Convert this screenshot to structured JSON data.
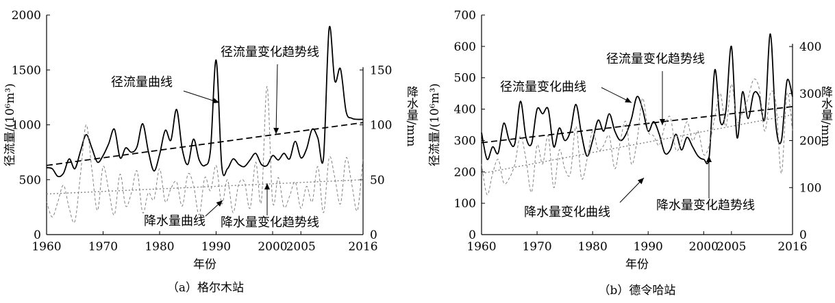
{
  "colors": {
    "runoff": "#000000",
    "trend": "#000000",
    "precip": "#808080",
    "axis": "#000000",
    "background": "#ffffff"
  },
  "chart_data": [
    {
      "type": "line",
      "caption": "（a）格尔木站",
      "xlabel": "年份",
      "ylabel_left": "径流量/(10⁶m³)",
      "ylabel_right": "降水量/mm",
      "xticks": [
        1960,
        1970,
        1980,
        1990,
        2000,
        2005,
        2016
      ],
      "yticks_left": [
        0,
        500,
        1000,
        1500,
        2000
      ],
      "yticks_right": [
        0,
        50,
        100,
        150
      ],
      "xlim": [
        1960,
        2016
      ],
      "ylim_left": [
        0,
        2000
      ],
      "ylim_right": [
        0,
        200
      ],
      "grid": false,
      "series": [
        {
          "name": "径流量曲线",
          "axis": "left",
          "style": "solid",
          "x": [
            1960,
            1961,
            1962,
            1963,
            1964,
            1965,
            1966,
            1967,
            1968,
            1969,
            1970,
            1971,
            1972,
            1973,
            1974,
            1975,
            1976,
            1977,
            1978,
            1979,
            1980,
            1981,
            1982,
            1983,
            1984,
            1985,
            1986,
            1987,
            1988,
            1989,
            1990,
            1991,
            1992,
            1993,
            1994,
            1995,
            1996,
            1997,
            1998,
            1999,
            2000,
            2001,
            2002,
            2003,
            2004,
            2005,
            2006,
            2007,
            2008,
            2009,
            2010,
            2011,
            2012,
            2013,
            2014,
            2015,
            2016
          ],
          "values": [
            610,
            600,
            530,
            560,
            690,
            600,
            760,
            910,
            790,
            660,
            720,
            830,
            960,
            700,
            790,
            750,
            800,
            1010,
            760,
            580,
            730,
            950,
            860,
            1140,
            780,
            640,
            870,
            680,
            630,
            770,
            1590,
            620,
            600,
            690,
            640,
            620,
            680,
            740,
            640,
            630,
            720,
            680,
            740,
            690,
            850,
            700,
            780,
            960,
            880,
            700,
            1880,
            1400,
            1510,
            1120,
            1060,
            1050,
            1050
          ]
        },
        {
          "name": "径流量变化趋势线",
          "axis": "left",
          "style": "dashed",
          "x": [
            1960,
            2016
          ],
          "values": [
            630,
            1020
          ]
        },
        {
          "name": "降水量曲线",
          "axis": "right",
          "style": "dashed",
          "x": [
            1960,
            1961,
            1962,
            1963,
            1964,
            1965,
            1966,
            1967,
            1968,
            1969,
            1970,
            1971,
            1972,
            1973,
            1974,
            1975,
            1976,
            1977,
            1978,
            1979,
            1980,
            1981,
            1982,
            1983,
            1984,
            1985,
            1986,
            1987,
            1988,
            1989,
            1990,
            1991,
            1992,
            1993,
            1994,
            1995,
            1996,
            1997,
            1998,
            1999,
            2000,
            2001,
            2002,
            2003,
            2004,
            2005,
            2006,
            2007,
            2008,
            2009,
            2010,
            2011,
            2012,
            2013,
            2014,
            2015,
            2016
          ],
          "values": [
            30,
            16,
            30,
            45,
            24,
            12,
            55,
            100,
            60,
            22,
            62,
            40,
            18,
            55,
            26,
            38,
            58,
            20,
            38,
            32,
            60,
            30,
            42,
            48,
            26,
            55,
            45,
            18,
            52,
            40,
            63,
            28,
            50,
            20,
            46,
            48,
            24,
            66,
            30,
            135,
            30,
            52,
            25,
            35,
            48,
            24,
            44,
            30,
            62,
            20,
            70,
            52,
            28,
            70,
            46,
            22,
            70
          ]
        },
        {
          "name": "降水量变化趋势线",
          "axis": "right",
          "style": "dotted",
          "x": [
            1960,
            2016
          ],
          "values": [
            37,
            50
          ]
        }
      ],
      "annotations": [
        "径流量曲线",
        "径流量变化趋势线",
        "降水量曲线",
        "降水量变化趋势线"
      ]
    },
    {
      "type": "line",
      "caption": "（b）德令哈站",
      "xlabel": "年份",
      "ylabel_left": "径流量/(10⁶m³)",
      "ylabel_right": "降水量/mm",
      "xticks": [
        1960,
        1970,
        1980,
        1990,
        2000,
        2005,
        2016
      ],
      "yticks_left": [
        0,
        100,
        200,
        300,
        400,
        500,
        600,
        700
      ],
      "yticks_right": [
        0,
        100,
        200,
        300,
        400
      ],
      "xlim": [
        1960,
        2016
      ],
      "ylim_left": [
        0,
        700
      ],
      "ylim_right": [
        0,
        467
      ],
      "grid": false,
      "series": [
        {
          "name": "径流量变化曲线",
          "axis": "left",
          "style": "solid",
          "x": [
            1960,
            1961,
            1962,
            1963,
            1964,
            1965,
            1966,
            1967,
            1968,
            1969,
            1970,
            1971,
            1972,
            1973,
            1974,
            1975,
            1976,
            1977,
            1978,
            1979,
            1980,
            1981,
            1982,
            1983,
            1984,
            1985,
            1986,
            1987,
            1988,
            1989,
            1990,
            1991,
            1992,
            1993,
            1994,
            1995,
            1996,
            1997,
            1998,
            1999,
            2000,
            2001,
            2002,
            2003,
            2004,
            2005,
            2006,
            2007,
            2008,
            2009,
            2010,
            2011,
            2012,
            2013,
            2014,
            2015,
            2016
          ],
          "values": [
            325,
            240,
            280,
            260,
            355,
            300,
            290,
            425,
            310,
            290,
            400,
            385,
            400,
            280,
            340,
            300,
            330,
            415,
            320,
            250,
            300,
            365,
            330,
            385,
            330,
            300,
            320,
            370,
            440,
            400,
            330,
            360,
            320,
            260,
            270,
            320,
            270,
            310,
            280,
            250,
            240,
            250,
            525,
            360,
            395,
            600,
            310,
            455,
            370,
            450,
            440,
            370,
            640,
            350,
            300,
            490,
            440
          ]
        },
        {
          "name": "径流量变化趋势线",
          "axis": "left",
          "style": "dashed",
          "x": [
            1960,
            2016
          ],
          "values": [
            293,
            408
          ]
        },
        {
          "name": "降水量变化曲线",
          "axis": "right",
          "style": "dashed",
          "x": [
            1960,
            1961,
            1962,
            1963,
            1964,
            1965,
            1966,
            1967,
            1968,
            1969,
            1970,
            1971,
            1972,
            1973,
            1974,
            1975,
            1976,
            1977,
            1978,
            1979,
            1980,
            1981,
            1982,
            1983,
            1984,
            1985,
            1986,
            1987,
            1988,
            1989,
            1990,
            1991,
            1992,
            1993,
            1994,
            1995,
            1996,
            1997,
            1998,
            1999,
            2000,
            2001,
            2002,
            2003,
            2004,
            2005,
            2006,
            2007,
            2008,
            2009,
            2010,
            2011,
            2012,
            2013,
            2014,
            2015,
            2016
          ],
          "values": [
            150,
            85,
            130,
            160,
            110,
            120,
            150,
            210,
            160,
            90,
            190,
            150,
            210,
            100,
            180,
            140,
            130,
            230,
            120,
            160,
            220,
            180,
            190,
            210,
            140,
            200,
            240,
            150,
            200,
            290,
            220,
            210,
            190,
            230,
            250,
            180,
            200,
            240,
            200,
            220,
            170,
            190,
            250,
            300,
            230,
            320,
            240,
            260,
            290,
            330,
            310,
            220,
            300,
            280,
            130,
            300,
            220
          ]
        },
        {
          "name": "降水量变化趋势线",
          "axis": "right",
          "style": "dotted",
          "x": [
            1960,
            2016
          ],
          "values": [
            130,
            255
          ]
        }
      ],
      "annotations": [
        "径流量变化曲线",
        "径流量变化趋势线",
        "降水量变化曲线",
        "降水量变化趋势线"
      ]
    }
  ]
}
